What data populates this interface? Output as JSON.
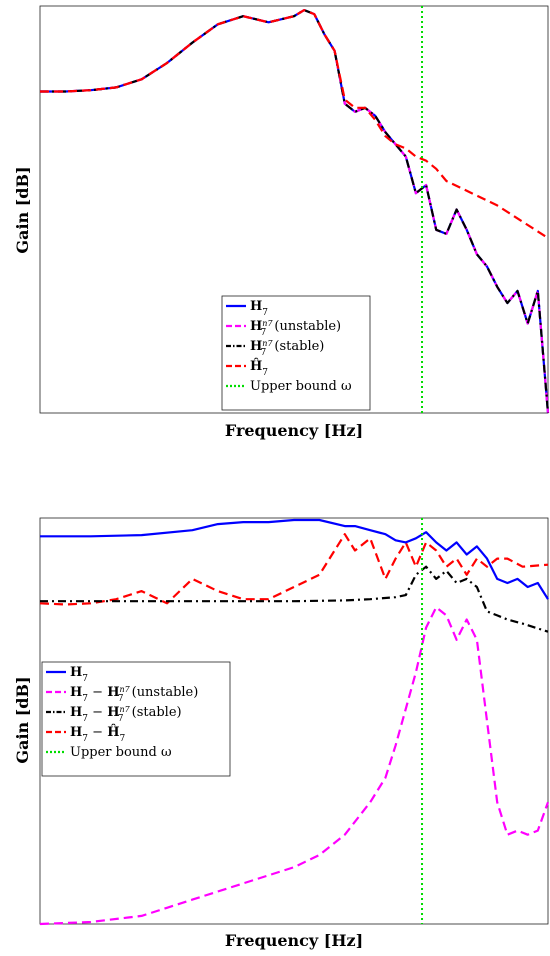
{
  "chart_data": [
    {
      "type": "line",
      "xlabel": "Frequency [Hz]",
      "ylabel": "Gain [dB]",
      "grid": false,
      "legend": "bottom-center",
      "x_range": [
        0,
        1
      ],
      "y_range": [
        0,
        1
      ],
      "series": [
        {
          "key": "H",
          "legend_main": "H",
          "legend_sub": "7",
          "legend_sup": "",
          "legend_suffix": "",
          "color": "#0000ff",
          "dash": "solid",
          "x": [
            0,
            0.05,
            0.1,
            0.15,
            0.2,
            0.25,
            0.3,
            0.35,
            0.4,
            0.45,
            0.5,
            0.52,
            0.54,
            0.56,
            0.58,
            0.6,
            0.62,
            0.64,
            0.66,
            0.68,
            0.7,
            0.72,
            0.74,
            0.76,
            0.78,
            0.8,
            0.82,
            0.84,
            0.86,
            0.88,
            0.9,
            0.92,
            0.94,
            0.96,
            0.98,
            1.0
          ],
          "y": [
            0.79,
            0.79,
            0.793,
            0.8,
            0.82,
            0.86,
            0.91,
            0.955,
            0.975,
            0.96,
            0.975,
            0.99,
            0.98,
            0.93,
            0.89,
            0.76,
            0.74,
            0.75,
            0.73,
            0.69,
            0.66,
            0.63,
            0.54,
            0.56,
            0.45,
            0.44,
            0.5,
            0.45,
            0.39,
            0.36,
            0.31,
            0.27,
            0.3,
            0.22,
            0.3,
            0.0
          ]
        },
        {
          "key": "unstable",
          "legend_main": "H",
          "legend_sub": "7",
          "legend_sup": "n7",
          "legend_suffix": "(unstable)",
          "color": "#ff00ff",
          "dash": "dash",
          "x": [
            0,
            0.05,
            0.1,
            0.15,
            0.2,
            0.25,
            0.3,
            0.35,
            0.4,
            0.45,
            0.5,
            0.52,
            0.54,
            0.56,
            0.58,
            0.6,
            0.62,
            0.64,
            0.66,
            0.68,
            0.7,
            0.72,
            0.74,
            0.76,
            0.78,
            0.8,
            0.82,
            0.84,
            0.86,
            0.88,
            0.9,
            0.92,
            0.94,
            0.96,
            0.98,
            1.0
          ],
          "y": [
            0.79,
            0.79,
            0.793,
            0.8,
            0.82,
            0.86,
            0.91,
            0.955,
            0.975,
            0.96,
            0.975,
            0.99,
            0.98,
            0.93,
            0.89,
            0.76,
            0.74,
            0.75,
            0.73,
            0.69,
            0.66,
            0.63,
            0.54,
            0.56,
            0.45,
            0.44,
            0.5,
            0.45,
            0.39,
            0.36,
            0.31,
            0.27,
            0.3,
            0.22,
            0.3,
            0.0
          ]
        },
        {
          "key": "stable",
          "legend_main": "H",
          "legend_sub": "7",
          "legend_sup": "n7",
          "legend_suffix": "(stable)",
          "color": "#000000",
          "dash": "dashdot",
          "x": [
            0,
            0.05,
            0.1,
            0.15,
            0.2,
            0.25,
            0.3,
            0.35,
            0.4,
            0.45,
            0.5,
            0.52,
            0.54,
            0.56,
            0.58,
            0.6,
            0.62,
            0.64,
            0.66,
            0.68,
            0.7,
            0.72,
            0.74,
            0.76,
            0.78,
            0.8,
            0.82,
            0.84,
            0.86,
            0.88,
            0.9,
            0.92,
            0.94,
            0.96,
            0.98,
            1.0
          ],
          "y": [
            0.79,
            0.79,
            0.793,
            0.8,
            0.82,
            0.86,
            0.91,
            0.955,
            0.975,
            0.96,
            0.975,
            0.99,
            0.98,
            0.93,
            0.89,
            0.76,
            0.74,
            0.75,
            0.73,
            0.69,
            0.66,
            0.63,
            0.54,
            0.56,
            0.45,
            0.44,
            0.5,
            0.45,
            0.39,
            0.36,
            0.31,
            0.27,
            0.3,
            0.22,
            0.3,
            0.0
          ]
        },
        {
          "key": "hat",
          "legend_main": "Ĥ",
          "legend_sub": "7",
          "legend_sup": "",
          "legend_suffix": "",
          "color": "#ff0000",
          "dash": "dash",
          "x": [
            0,
            0.05,
            0.1,
            0.15,
            0.2,
            0.25,
            0.3,
            0.35,
            0.4,
            0.45,
            0.5,
            0.52,
            0.54,
            0.56,
            0.58,
            0.6,
            0.62,
            0.64,
            0.66,
            0.68,
            0.7,
            0.72,
            0.74,
            0.76,
            0.78,
            0.8,
            0.85,
            0.9,
            0.95,
            1.0
          ],
          "y": [
            0.79,
            0.79,
            0.793,
            0.8,
            0.82,
            0.86,
            0.91,
            0.955,
            0.975,
            0.96,
            0.975,
            0.99,
            0.98,
            0.93,
            0.89,
            0.77,
            0.75,
            0.75,
            0.72,
            0.68,
            0.66,
            0.65,
            0.63,
            0.62,
            0.6,
            0.57,
            0.54,
            0.51,
            0.47,
            0.43
          ]
        },
        {
          "key": "bound",
          "legend_main": "Upper bound ω",
          "legend_sub": "",
          "legend_sup": "",
          "legend_suffix": "",
          "color": "#00dd00",
          "dash": "dot",
          "vline_x": 0.752
        }
      ]
    },
    {
      "type": "line",
      "xlabel": "Frequency [Hz]",
      "ylabel": "Gain [dB]",
      "grid": false,
      "legend": "middle-left",
      "x_range": [
        0,
        1
      ],
      "y_range": [
        0,
        1
      ],
      "series": [
        {
          "key": "H",
          "legend_main": "H",
          "legend_sub": "7",
          "legend_sup": "",
          "legend_suffix": "",
          "color": "#0000ff",
          "dash": "solid",
          "x": [
            0,
            0.1,
            0.2,
            0.3,
            0.35,
            0.4,
            0.45,
            0.5,
            0.55,
            0.6,
            0.62,
            0.65,
            0.68,
            0.7,
            0.72,
            0.74,
            0.76,
            0.78,
            0.8,
            0.82,
            0.84,
            0.86,
            0.88,
            0.9,
            0.92,
            0.94,
            0.96,
            0.98,
            1.0
          ],
          "y": [
            0.955,
            0.955,
            0.958,
            0.97,
            0.985,
            0.99,
            0.99,
            0.995,
            0.995,
            0.98,
            0.98,
            0.97,
            0.96,
            0.945,
            0.94,
            0.95,
            0.965,
            0.94,
            0.92,
            0.94,
            0.91,
            0.93,
            0.9,
            0.85,
            0.84,
            0.85,
            0.83,
            0.84,
            0.8
          ]
        },
        {
          "key": "unstable",
          "legend_main": "H",
          "legend_sub": "7",
          "legend_sup": "n7",
          "legend_suffix": "(unstable)",
          "color": "#ff00ff",
          "dash": "dash",
          "x": [
            0,
            0.1,
            0.2,
            0.25,
            0.3,
            0.35,
            0.4,
            0.45,
            0.5,
            0.55,
            0.6,
            0.65,
            0.68,
            0.7,
            0.72,
            0.74,
            0.76,
            0.78,
            0.8,
            0.82,
            0.84,
            0.86,
            0.88,
            0.9,
            0.92,
            0.94,
            0.96,
            0.98,
            1.0
          ],
          "y": [
            0.0,
            0.005,
            0.02,
            0.04,
            0.06,
            0.08,
            0.1,
            0.12,
            0.14,
            0.17,
            0.22,
            0.3,
            0.36,
            0.44,
            0.53,
            0.62,
            0.73,
            0.78,
            0.76,
            0.7,
            0.75,
            0.7,
            0.5,
            0.3,
            0.22,
            0.23,
            0.22,
            0.23,
            0.3
          ]
        },
        {
          "key": "stable",
          "legend_main": "H",
          "legend_sub": "7",
          "legend_sup": "n7",
          "legend_suffix": "(stable)",
          "color": "#000000",
          "dash": "dashdot",
          "x": [
            0,
            0.1,
            0.2,
            0.3,
            0.4,
            0.5,
            0.6,
            0.65,
            0.7,
            0.72,
            0.74,
            0.76,
            0.78,
            0.8,
            0.82,
            0.84,
            0.86,
            0.88,
            0.9,
            0.92,
            0.95,
            1.0
          ],
          "y": [
            0.795,
            0.795,
            0.795,
            0.795,
            0.795,
            0.795,
            0.797,
            0.8,
            0.805,
            0.81,
            0.86,
            0.88,
            0.85,
            0.87,
            0.84,
            0.85,
            0.83,
            0.77,
            0.76,
            0.75,
            0.74,
            0.72
          ]
        },
        {
          "key": "hat",
          "legend_main": "Ĥ",
          "legend_sub": "7",
          "legend_sup": "",
          "legend_suffix": "",
          "color": "#ff0000",
          "dash": "dash",
          "x": [
            0,
            0.05,
            0.1,
            0.15,
            0.2,
            0.25,
            0.3,
            0.35,
            0.4,
            0.45,
            0.5,
            0.55,
            0.6,
            0.62,
            0.65,
            0.68,
            0.7,
            0.72,
            0.74,
            0.76,
            0.78,
            0.8,
            0.82,
            0.84,
            0.86,
            0.88,
            0.9,
            0.92,
            0.95,
            1.0
          ],
          "y": [
            0.79,
            0.787,
            0.79,
            0.8,
            0.82,
            0.79,
            0.85,
            0.82,
            0.8,
            0.8,
            0.83,
            0.86,
            0.96,
            0.92,
            0.95,
            0.85,
            0.9,
            0.94,
            0.88,
            0.94,
            0.92,
            0.88,
            0.9,
            0.86,
            0.9,
            0.88,
            0.9,
            0.9,
            0.88,
            0.885
          ]
        },
        {
          "key": "bound",
          "legend_main": "Upper bound ω",
          "legend_sub": "",
          "legend_sup": "",
          "legend_suffix": "",
          "color": "#00dd00",
          "dash": "dot",
          "vline_x": 0.752
        }
      ]
    }
  ]
}
